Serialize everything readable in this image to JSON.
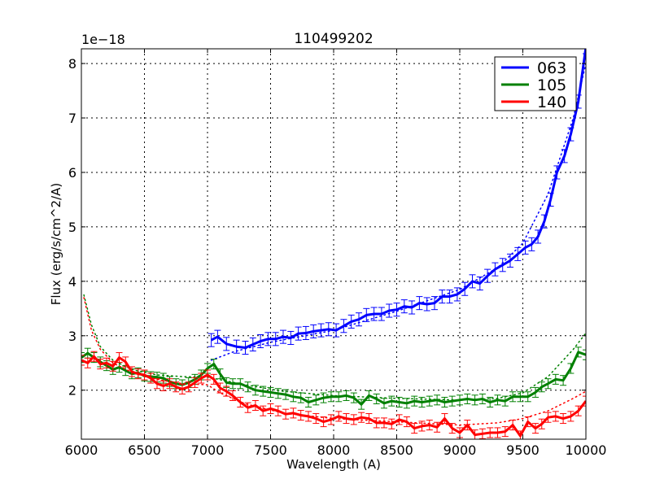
{
  "chart_data": {
    "type": "line",
    "title": "110499202",
    "xlabel": "Wavelength (A)",
    "ylabel": "Flux (erg/s/cm^2/A)",
    "y_offset_label": "1e−18",
    "xlim": [
      6000,
      10000
    ],
    "ylim": [
      1.1,
      8.27
    ],
    "xticks": [
      6000,
      6500,
      7000,
      7500,
      8000,
      8500,
      9000,
      9500,
      10000
    ],
    "xtick_labels": [
      "6000",
      "6500",
      "7000",
      "7500",
      "8000",
      "8500",
      "9000",
      "9500",
      "10000"
    ],
    "yticks": [
      2,
      3,
      4,
      5,
      6,
      7,
      8
    ],
    "ytick_labels": [
      "2",
      "3",
      "4",
      "5",
      "6",
      "7",
      "8"
    ],
    "grid": true,
    "grid_style": "dotted",
    "legend_position": "upper right",
    "series": [
      {
        "name": "063",
        "color": "#0000ff",
        "x": [
          7030,
          7080,
          7150,
          7230,
          7300,
          7360,
          7420,
          7480,
          7540,
          7600,
          7660,
          7720,
          7780,
          7840,
          7900,
          7960,
          8020,
          8080,
          8140,
          8200,
          8260,
          8320,
          8380,
          8440,
          8500,
          8560,
          8620,
          8680,
          8740,
          8800,
          8860,
          8920,
          8980,
          9040,
          9100,
          9160,
          9220,
          9280,
          9340,
          9400,
          9460,
          9520,
          9570,
          9620,
          9670,
          9720,
          9770,
          9830,
          9880,
          9940,
          10000
        ],
        "y": [
          2.92,
          2.98,
          2.85,
          2.8,
          2.78,
          2.84,
          2.9,
          2.94,
          2.94,
          2.98,
          2.96,
          3.04,
          3.05,
          3.08,
          3.1,
          3.12,
          3.1,
          3.18,
          3.26,
          3.3,
          3.38,
          3.4,
          3.4,
          3.46,
          3.48,
          3.54,
          3.52,
          3.6,
          3.58,
          3.6,
          3.72,
          3.72,
          3.76,
          3.86,
          4.0,
          3.96,
          4.1,
          4.22,
          4.3,
          4.38,
          4.5,
          4.62,
          4.68,
          4.82,
          5.1,
          5.5,
          6.0,
          6.3,
          6.7,
          7.3,
          8.3
        ],
        "yerr": 0.12,
        "model_x": [
          7030,
          7200,
          7500,
          8000,
          8500,
          9000,
          9300,
          9500,
          9700,
          9900,
          10000
        ],
        "model_y": [
          2.55,
          2.7,
          2.88,
          3.1,
          3.45,
          3.85,
          4.25,
          4.7,
          5.6,
          7.0,
          8.0
        ]
      },
      {
        "name": "105",
        "color": "#008000",
        "x": [
          6000,
          6050,
          6100,
          6150,
          6200,
          6250,
          6300,
          6350,
          6400,
          6450,
          6500,
          6550,
          6600,
          6650,
          6700,
          6750,
          6800,
          6850,
          6900,
          6950,
          7000,
          7050,
          7100,
          7150,
          7200,
          7260,
          7320,
          7380,
          7440,
          7500,
          7560,
          7620,
          7680,
          7740,
          7800,
          7860,
          7920,
          7980,
          8040,
          8100,
          8160,
          8220,
          8280,
          8340,
          8400,
          8460,
          8520,
          8580,
          8640,
          8700,
          8760,
          8820,
          8880,
          8940,
          9000,
          9060,
          9120,
          9180,
          9240,
          9300,
          9360,
          9420,
          9480,
          9540,
          9600,
          9650,
          9700,
          9760,
          9820,
          9880,
          9940,
          10000
        ],
        "y": [
          2.6,
          2.68,
          2.6,
          2.52,
          2.45,
          2.38,
          2.42,
          2.36,
          2.3,
          2.32,
          2.26,
          2.25,
          2.24,
          2.22,
          2.16,
          2.12,
          2.1,
          2.14,
          2.2,
          2.28,
          2.4,
          2.48,
          2.3,
          2.14,
          2.12,
          2.12,
          2.06,
          2.0,
          1.98,
          1.96,
          1.94,
          1.92,
          1.88,
          1.86,
          1.78,
          1.82,
          1.86,
          1.88,
          1.88,
          1.9,
          1.86,
          1.74,
          1.9,
          1.84,
          1.76,
          1.8,
          1.78,
          1.76,
          1.8,
          1.78,
          1.8,
          1.82,
          1.78,
          1.8,
          1.82,
          1.84,
          1.82,
          1.84,
          1.78,
          1.82,
          1.8,
          1.88,
          1.88,
          1.88,
          1.96,
          2.06,
          2.12,
          2.2,
          2.18,
          2.4,
          2.7,
          2.65
        ],
        "yerr": 0.09,
        "model_x": [
          6020,
          6080,
          6150,
          6250,
          6400,
          6600,
          6800,
          7000,
          7300,
          7600,
          8000,
          8500,
          9000,
          9300,
          9500,
          9700,
          9900,
          10000
        ],
        "model_y": [
          3.75,
          3.2,
          2.8,
          2.55,
          2.38,
          2.28,
          2.25,
          2.24,
          2.1,
          1.98,
          1.9,
          1.85,
          1.82,
          1.85,
          1.95,
          2.25,
          2.75,
          3.05
        ]
      },
      {
        "name": "140",
        "color": "#ff0000",
        "x": [
          6000,
          6050,
          6100,
          6150,
          6200,
          6250,
          6300,
          6350,
          6400,
          6450,
          6500,
          6550,
          6600,
          6650,
          6700,
          6750,
          6800,
          6850,
          6900,
          6950,
          7000,
          7050,
          7100,
          7150,
          7200,
          7260,
          7320,
          7380,
          7440,
          7500,
          7560,
          7620,
          7680,
          7740,
          7800,
          7860,
          7920,
          7980,
          8040,
          8100,
          8160,
          8220,
          8280,
          8340,
          8400,
          8460,
          8520,
          8580,
          8640,
          8700,
          8760,
          8820,
          8880,
          8940,
          9000,
          9060,
          9120,
          9180,
          9240,
          9300,
          9360,
          9420,
          9480,
          9540,
          9600,
          9650,
          9700,
          9760,
          9820,
          9880,
          9940,
          10000
        ],
        "y": [
          2.55,
          2.5,
          2.62,
          2.48,
          2.5,
          2.44,
          2.6,
          2.52,
          2.34,
          2.3,
          2.28,
          2.22,
          2.12,
          2.08,
          2.12,
          2.06,
          2.02,
          2.06,
          2.14,
          2.22,
          2.28,
          2.2,
          2.04,
          1.98,
          1.9,
          1.78,
          1.68,
          1.72,
          1.62,
          1.66,
          1.62,
          1.56,
          1.58,
          1.54,
          1.52,
          1.48,
          1.42,
          1.46,
          1.52,
          1.48,
          1.46,
          1.5,
          1.48,
          1.4,
          1.4,
          1.38,
          1.46,
          1.42,
          1.3,
          1.34,
          1.36,
          1.32,
          1.48,
          1.3,
          1.22,
          1.36,
          1.18,
          1.2,
          1.22,
          1.22,
          1.24,
          1.36,
          1.16,
          1.42,
          1.3,
          1.38,
          1.5,
          1.52,
          1.48,
          1.52,
          1.62,
          1.8
        ],
        "yerr": 0.09,
        "model_x": [
          6020,
          6080,
          6150,
          6250,
          6400,
          6600,
          6800,
          7000,
          7100,
          7300,
          7600,
          8000,
          8500,
          9000,
          9300,
          9500,
          9700,
          9900,
          10000
        ],
        "model_y": [
          3.7,
          3.1,
          2.75,
          2.5,
          2.33,
          2.2,
          2.12,
          2.1,
          1.95,
          1.75,
          1.58,
          1.48,
          1.42,
          1.36,
          1.4,
          1.48,
          1.62,
          1.85,
          1.98
        ]
      }
    ]
  }
}
